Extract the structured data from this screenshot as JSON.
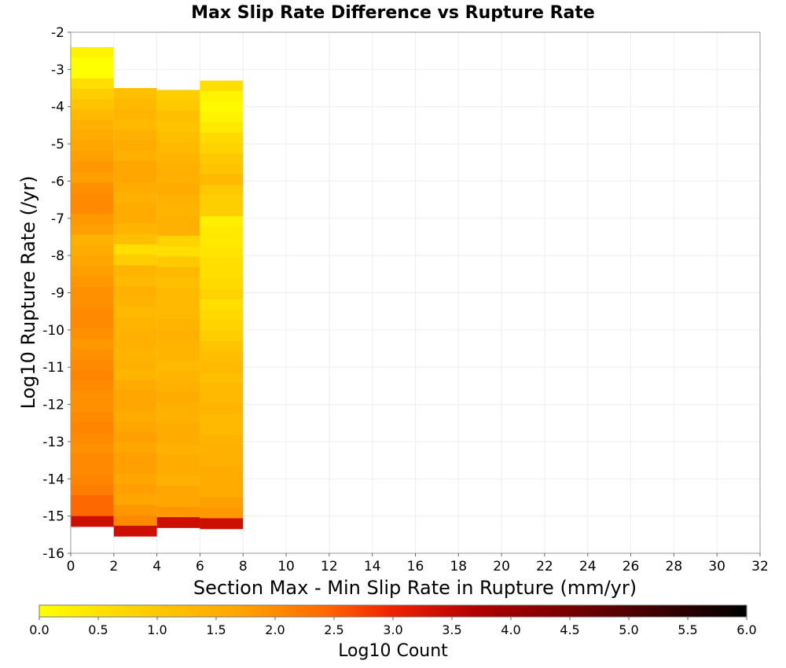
{
  "chart_data": {
    "type": "heatmap",
    "title": "Max Slip Rate Difference vs Rupture Rate",
    "xlabel": "Section Max - Min Slip Rate in Rupture (mm/yr)",
    "ylabel": "Log10 Rupture Rate (/yr)",
    "colorbar_label": "Log10 Count",
    "xlim": [
      0,
      32
    ],
    "ylim": [
      -16,
      -2
    ],
    "x_ticks": [
      0,
      2,
      4,
      6,
      8,
      10,
      12,
      14,
      16,
      18,
      20,
      22,
      24,
      26,
      28,
      30,
      32
    ],
    "y_ticks": [
      -2,
      -3,
      -4,
      -5,
      -6,
      -7,
      -8,
      -9,
      -10,
      -11,
      -12,
      -13,
      -14,
      -15,
      -16
    ],
    "colorbar_ticks": [
      0.0,
      0.5,
      1.0,
      1.5,
      2.0,
      2.5,
      3.0,
      3.5,
      4.0,
      4.5,
      5.0,
      5.5,
      6.0
    ],
    "colorbar_range": [
      0,
      6
    ],
    "colormap": [
      "#ffff00",
      "#ffd000",
      "#ffa500",
      "#ff6a00",
      "#ee2200",
      "#b00000",
      "#7a0000",
      "#000000"
    ],
    "grid": true,
    "colorbar_position": "bottom",
    "x_bin_width": 2,
    "y_bin_height": 0.28,
    "columns": [
      {
        "x0": 0,
        "y_top": -2.4,
        "values": [
          0.2,
          0.0,
          0.0,
          0.6,
          0.9,
          1.1,
          1.3,
          1.5,
          1.6,
          1.7,
          1.8,
          1.9,
          1.8,
          2.0,
          2.1,
          2.1,
          1.9,
          1.8,
          1.5,
          1.6,
          1.7,
          1.8,
          1.9,
          2.0,
          2.0,
          2.1,
          2.1,
          2.0,
          1.9,
          2.0,
          2.1,
          2.2,
          2.1,
          2.0,
          2.0,
          2.1,
          2.2,
          2.1,
          2.0,
          2.1,
          2.1,
          2.2,
          2.3,
          2.6,
          2.6,
          3.9
        ]
      },
      {
        "x0": 2,
        "y_top": -3.5,
        "values": [
          1.2,
          1.3,
          1.4,
          1.3,
          1.5,
          1.6,
          1.5,
          1.7,
          1.7,
          1.6,
          1.5,
          1.6,
          1.6,
          1.4,
          1.2,
          0.6,
          0.9,
          1.4,
          1.3,
          1.5,
          1.4,
          1.3,
          1.4,
          1.5,
          1.5,
          1.4,
          1.5,
          1.4,
          1.6,
          1.7,
          1.7,
          1.6,
          1.7,
          1.8,
          1.7,
          1.8,
          1.8,
          1.7,
          1.8,
          1.7,
          1.9,
          2.1,
          3.9
        ]
      },
      {
        "x0": 4,
        "y_top": -3.55,
        "values": [
          0.9,
          1.0,
          1.2,
          1.1,
          1.2,
          1.3,
          1.4,
          1.5,
          1.5,
          1.6,
          1.5,
          1.4,
          1.5,
          1.5,
          0.8,
          0.6,
          1.0,
          1.3,
          1.2,
          1.3,
          1.3,
          1.3,
          1.4,
          1.5,
          1.4,
          1.4,
          1.3,
          1.4,
          1.5,
          1.6,
          1.5,
          1.5,
          1.6,
          1.6,
          1.5,
          1.6,
          1.6,
          1.5,
          1.7,
          1.7,
          1.9,
          3.9
        ]
      },
      {
        "x0": 6,
        "y_top": -3.3,
        "values": [
          0.6,
          0.2,
          0.1,
          0.2,
          0.4,
          0.7,
          0.8,
          1.0,
          1.1,
          1.3,
          1.0,
          0.9,
          0.9,
          0.3,
          0.4,
          0.4,
          0.5,
          0.6,
          0.6,
          0.7,
          0.8,
          0.6,
          0.7,
          0.8,
          0.9,
          1.1,
          1.2,
          1.3,
          1.2,
          1.3,
          1.3,
          1.4,
          1.3,
          1.3,
          1.4,
          1.5,
          1.5,
          1.6,
          1.6,
          1.6,
          1.8,
          1.9,
          3.9
        ]
      }
    ],
    "note_columns": "cells listed top-to-bottom from y_top; 0-valued skip cells are empty (white)"
  }
}
